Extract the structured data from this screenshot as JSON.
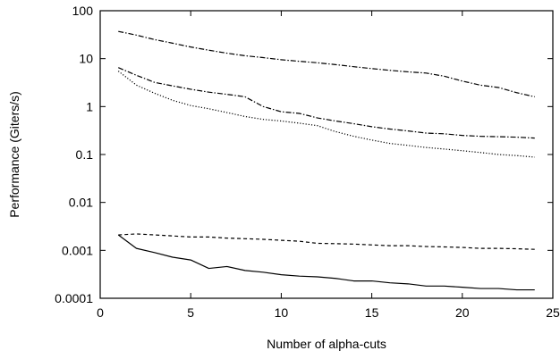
{
  "chart_data": {
    "type": "line",
    "xlabel": "Number of alpha-cuts",
    "ylabel": "Performance (Giters/s)",
    "x_scale": "linear",
    "y_scale": "log",
    "xlim": [
      0,
      25
    ],
    "ylim": [
      0.0001,
      100
    ],
    "grid": false,
    "x_ticks": [
      0,
      5,
      10,
      15,
      20,
      25
    ],
    "x_tick_labels": [
      "0",
      "5",
      "10",
      "15",
      "20",
      "25"
    ],
    "y_ticks": [
      0.0001,
      0.001,
      0.01,
      0.1,
      1,
      10,
      100
    ],
    "y_tick_labels": [
      "0.0001",
      "0.001",
      "0.01",
      "0.1",
      "1",
      "10",
      "100"
    ],
    "series": [
      {
        "style": "dash-dot",
        "x": [
          1,
          2,
          3,
          4,
          5,
          6,
          7,
          8,
          9,
          10,
          11,
          12,
          13,
          14,
          15,
          16,
          17,
          18,
          19,
          20,
          21,
          22,
          23,
          24
        ],
        "y": [
          37,
          31,
          25,
          21,
          17.5,
          15,
          13,
          11.5,
          10.5,
          9.5,
          8.8,
          8.2,
          7.5,
          6.8,
          6.2,
          5.7,
          5.3,
          5,
          4.3,
          3.4,
          2.8,
          2.5,
          1.95,
          1.6
        ]
      },
      {
        "style": "dash-dot",
        "x": [
          1,
          2,
          3,
          4,
          5,
          6,
          7,
          8,
          9,
          10,
          11,
          12,
          13,
          14,
          15,
          16,
          17,
          18,
          19,
          20,
          21,
          22,
          23,
          24
        ],
        "y": [
          6.5,
          4.5,
          3.2,
          2.7,
          2.3,
          2.0,
          1.8,
          1.6,
          1.0,
          0.78,
          0.72,
          0.58,
          0.5,
          0.44,
          0.38,
          0.34,
          0.31,
          0.28,
          0.27,
          0.25,
          0.24,
          0.235,
          0.23,
          0.22
        ]
      },
      {
        "style": "dotted",
        "x": [
          1,
          2,
          3,
          4,
          5,
          6,
          7,
          8,
          9,
          10,
          11,
          12,
          13,
          14,
          15,
          16,
          17,
          18,
          19,
          20,
          21,
          22,
          23,
          24
        ],
        "y": [
          5.5,
          2.8,
          1.9,
          1.35,
          1.05,
          0.9,
          0.75,
          0.62,
          0.54,
          0.5,
          0.45,
          0.4,
          0.3,
          0.24,
          0.2,
          0.17,
          0.155,
          0.14,
          0.13,
          0.12,
          0.11,
          0.1,
          0.095,
          0.088
        ]
      },
      {
        "style": "dashed",
        "x": [
          1,
          2,
          3,
          4,
          5,
          6,
          7,
          8,
          9,
          10,
          11,
          12,
          13,
          14,
          15,
          16,
          17,
          18,
          19,
          20,
          21,
          22,
          23,
          24
        ],
        "y": [
          0.0021,
          0.0022,
          0.0021,
          0.002,
          0.0019,
          0.0019,
          0.0018,
          0.00175,
          0.0017,
          0.00162,
          0.00155,
          0.0014,
          0.00138,
          0.00135,
          0.0013,
          0.00125,
          0.00125,
          0.0012,
          0.00118,
          0.00115,
          0.0011,
          0.0011,
          0.00108,
          0.00105
        ]
      },
      {
        "style": "solid",
        "x": [
          1,
          2,
          3,
          4,
          5,
          6,
          7,
          8,
          9,
          10,
          11,
          12,
          13,
          14,
          15,
          16,
          17,
          18,
          19,
          20,
          21,
          22,
          23,
          24
        ],
        "y": [
          0.0021,
          0.0011,
          0.0009,
          0.00072,
          0.00063,
          0.00042,
          0.00046,
          0.00038,
          0.00035,
          0.00031,
          0.00029,
          0.00028,
          0.00026,
          0.00023,
          0.00023,
          0.00021,
          0.0002,
          0.00018,
          0.00018,
          0.00017,
          0.00016,
          0.00016,
          0.00015,
          0.00015
        ]
      }
    ]
  },
  "colors": {
    "background": "#ffffff",
    "axis": "#000000",
    "series": "#000000"
  }
}
